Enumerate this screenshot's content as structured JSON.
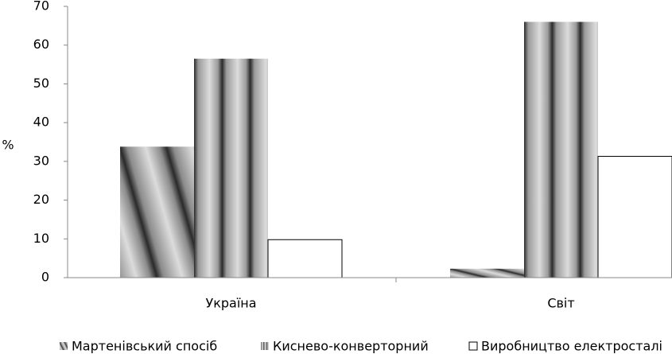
{
  "chart_data": {
    "type": "bar",
    "y_label": "%",
    "categories": [
      "Україна",
      "Світ"
    ],
    "series": [
      {
        "name": "Мартенівський спосіб",
        "color": "#8c8c8c",
        "values": [
          33.8,
          2.3
        ]
      },
      {
        "name": "Киснево-конверторний",
        "color": "#9a9a9a",
        "values": [
          56.5,
          66
        ]
      },
      {
        "name": "Виробництво електросталі",
        "color": "#ffffff",
        "values": [
          9.8,
          31.3
        ]
      }
    ],
    "ylim": [
      0,
      70
    ],
    "yticks": [
      0,
      10,
      20,
      30,
      40,
      50,
      60,
      70
    ],
    "grid": false,
    "legend": "bottom"
  }
}
